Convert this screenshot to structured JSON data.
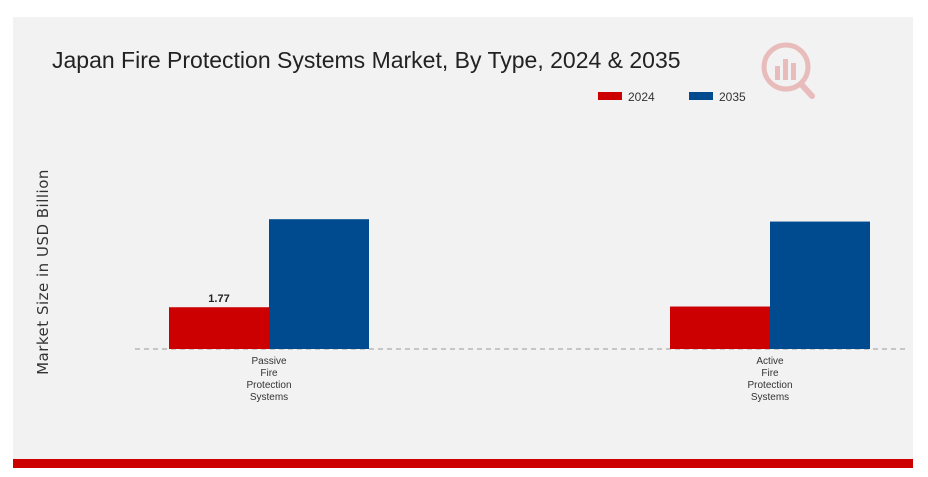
{
  "chart_data": {
    "type": "bar",
    "title": "Japan Fire Protection Systems Market, By Type, 2024 & 2035",
    "ylabel": "Market Size in USD Billion",
    "xlabel": "",
    "categories": [
      "Passive Fire Protection Systems",
      "Active Fire Protection Systems"
    ],
    "category_lines": [
      [
        "Passive",
        "Fire",
        "Protection",
        "Systems"
      ],
      [
        "Active",
        "Fire",
        "Protection",
        "Systems"
      ]
    ],
    "series": [
      {
        "name": "2024",
        "values": [
          1.77,
          1.8
        ],
        "color": "#cc0000"
      },
      {
        "name": "2035",
        "values": [
          5.5,
          5.4
        ],
        "color": "#004a8f"
      }
    ],
    "data_labels": [
      {
        "series": 0,
        "index": 0,
        "text": "1.77"
      }
    ],
    "ylim": [
      0,
      6.2
    ],
    "grid": false,
    "baseline_style": "dashed",
    "legend_position": "top-right"
  },
  "colors": {
    "background": "#f2f2f2",
    "accent_bar": "#cc0000",
    "watermark": "#cc0000"
  },
  "icons": {
    "watermark": "mrfr-logo-icon"
  }
}
